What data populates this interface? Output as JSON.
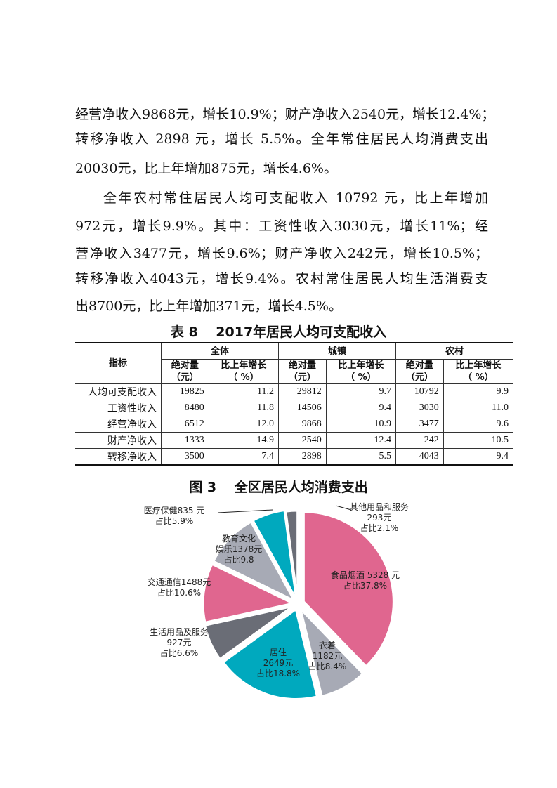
{
  "body_lines": [
    "经营净收入9868元，增长10.9%；财产净收入2540元，增长12.4%；",
    "转移净收入 2898 元，增长 5.5%。全年常住居民人均消费支出",
    "20030元，比上年增加875元，增长4.6%。",
    "全年农村常住居民人均可支配收入 10792 元，比上年增加",
    "972元，增长9.9%。其中：工资性收入3030元，增长11%；经",
    "营净收入3477元，增长9.6%；财产净收入242元，增长10.5%；",
    "转移净收入4043元，增长9.4%。农村常住居民人均生活消费支",
    "出8700元，比上年增加371元，增长4.5%。"
  ],
  "table": {
    "title": "表 8　 2017年居民人均可支配收入",
    "index_header": "指标",
    "groups": [
      "全体",
      "城镇",
      "农村"
    ],
    "sub_headers": [
      "绝对量（元）",
      "比上年增长（ %）"
    ],
    "rows": [
      [
        "人均可支配收入",
        "19825",
        "11.2",
        "29812",
        "9.7",
        "10792",
        "9.9"
      ],
      [
        "工资性收入",
        "8480",
        "11.8",
        "14506",
        "9.4",
        "3030",
        "11.0"
      ],
      [
        "经营净收入",
        "6512",
        "12.0",
        "9868",
        "10.9",
        "3477",
        "9.6"
      ],
      [
        "财产净收入",
        "1333",
        "14.9",
        "2540",
        "12.4",
        "242",
        "10.5"
      ],
      [
        "转移净收入",
        "3500",
        "7.4",
        "2898",
        "5.5",
        "4043",
        "9.4"
      ]
    ]
  },
  "chart_data": {
    "type": "pie",
    "title": "图 3　 全区居民人均消费支出",
    "slices": [
      {
        "name": "食品烟酒",
        "value": 5328,
        "share": 37.8,
        "label": [
          "食品烟酒 5328 元",
          "占比37.8%"
        ],
        "color": "#E0668F"
      },
      {
        "name": "衣着",
        "value": 1182,
        "share": 8.4,
        "label": [
          "衣着",
          "1182元",
          "占比8.4%"
        ],
        "color": "#A7AAB5"
      },
      {
        "name": "居住",
        "value": 2649,
        "share": 18.8,
        "label": [
          "居住",
          "2649元",
          "占比18.8%"
        ],
        "color": "#00A9BE"
      },
      {
        "name": "生活用品及服务",
        "value": 927,
        "share": 6.6,
        "label": [
          "生活用品及服务",
          "927元",
          "占比6.6%"
        ],
        "color": "#6A6D76"
      },
      {
        "name": "交通通信",
        "value": 1488,
        "share": 10.6,
        "label": [
          "交通通信1488元",
          "占比10.6%"
        ],
        "color": "#E0668F"
      },
      {
        "name": "教育文化娱乐",
        "value": 1378,
        "share": 9.8,
        "label": [
          "教育文化",
          "娱乐1378元",
          "占比9.8"
        ],
        "color": "#A7AAB5"
      },
      {
        "name": "医疗保健",
        "value": 835,
        "share": 5.9,
        "label": [
          "医疗保健835 元",
          "占比5.9%"
        ],
        "color": "#00A9BE"
      },
      {
        "name": "其他用品和服务",
        "value": 293,
        "share": 2.1,
        "label": [
          "其他用品和服务",
          "293元",
          "占比2.1%"
        ],
        "color": "#6A6D76"
      }
    ]
  }
}
